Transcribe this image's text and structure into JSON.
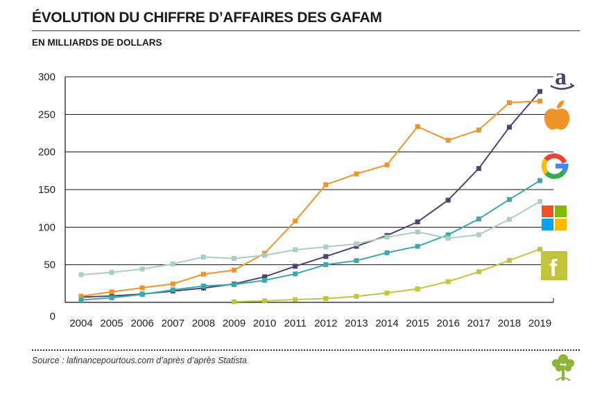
{
  "header": {
    "title": "ÉVOLUTION DU CHIFFRE D’AFFAIRES DES GAFAM",
    "subtitle": "EN MILLIARDS DE DOLLARS"
  },
  "footer": {
    "source": "Source : lafinancepourtous.com d’après d’après Statista"
  },
  "chart_data": {
    "type": "line",
    "title": "ÉVOLUTION DU CHIFFRE D’AFFAIRES DES GAFAM",
    "subtitle": "EN MILLIARDS DE DOLLARS",
    "xlabel": "",
    "ylabel": "",
    "x": [
      2004,
      2005,
      2006,
      2007,
      2008,
      2009,
      2010,
      2011,
      2012,
      2013,
      2014,
      2015,
      2016,
      2017,
      2018,
      2019
    ],
    "ylim": [
      0,
      300
    ],
    "yticks": [
      0,
      50,
      100,
      150,
      200,
      250,
      300
    ],
    "grid": "horizontal",
    "legend": "icons at right end of each series",
    "series": [
      {
        "icon": "amazon-logo-icon",
        "color": "#4b4374",
        "values": [
          7,
          8.5,
          11,
          15,
          19,
          24.5,
          34,
          48,
          61,
          74.5,
          89,
          107,
          136,
          178,
          233,
          280.5
        ]
      },
      {
        "icon": "apple-logo-icon",
        "color": "#ef9428",
        "values": [
          8.3,
          14,
          19.3,
          24.6,
          37.5,
          42.9,
          65.2,
          108.2,
          156.5,
          170.9,
          182.8,
          233.7,
          215.6,
          229.2,
          265.6,
          267.7
        ]
      },
      {
        "icon": "google-logo-icon",
        "color": "#3aa8ac",
        "values": [
          3.2,
          6.1,
          10.6,
          16.6,
          21.8,
          23.7,
          29.3,
          37.9,
          50.2,
          55.5,
          66,
          74.5,
          89.9,
          110.9,
          136.8,
          161.9
        ]
      },
      {
        "icon": "microsoft-logo-icon",
        "color": "#a9cfc2",
        "values": [
          36.8,
          39.8,
          44.3,
          51.1,
          60.4,
          58.4,
          62.5,
          69.9,
          73.7,
          77.8,
          86.8,
          93.6,
          85.3,
          90,
          110.4,
          134.2
        ]
      },
      {
        "icon": "facebook-logo-icon",
        "color": "#c2c43c",
        "values": [
          null,
          null,
          null,
          null,
          null,
          0.8,
          2,
          3.7,
          5.1,
          7.9,
          12.5,
          17.9,
          27.6,
          40.7,
          55.8,
          70.7
        ]
      }
    ]
  }
}
